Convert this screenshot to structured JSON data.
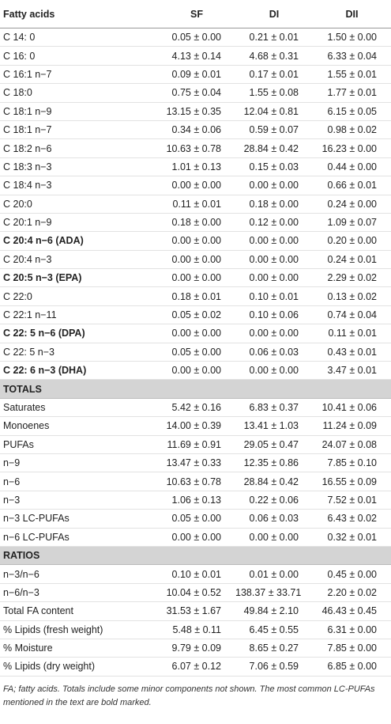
{
  "table": {
    "header": [
      "Fatty acids",
      "SF",
      "DI",
      "DII"
    ],
    "rows": [
      {
        "cells": [
          "C 14: 0",
          "0.05 ± 0.00",
          "0.21 ± 0.01",
          "1.50 ± 0.00"
        ]
      },
      {
        "cells": [
          "C 16: 0",
          "4.13 ± 0.14",
          "4.68 ± 0.31",
          "6.33 ± 0.04"
        ]
      },
      {
        "cells": [
          "C 16:1 n−7",
          "0.09 ± 0.01",
          "0.17 ± 0.01",
          "1.55 ± 0.01"
        ]
      },
      {
        "cells": [
          "C 18:0",
          "0.75 ± 0.04",
          "1.55 ± 0.08",
          "1.77 ± 0.01"
        ]
      },
      {
        "cells": [
          "C 18:1 n−9",
          "13.15 ± 0.35",
          "12.04 ± 0.81",
          "6.15 ± 0.05"
        ]
      },
      {
        "cells": [
          "C 18:1 n−7",
          "0.34 ± 0.06",
          "0.59 ± 0.07",
          "0.98 ± 0.02"
        ]
      },
      {
        "cells": [
          "C 18:2 n−6",
          "10.63 ± 0.78",
          "28.84 ± 0.42",
          "16.23 ± 0.00"
        ]
      },
      {
        "cells": [
          "C 18:3 n−3",
          "1.01 ± 0.13",
          "0.15 ± 0.03",
          "0.44 ± 0.00"
        ]
      },
      {
        "cells": [
          "C 18:4 n−3",
          "0.00 ± 0.00",
          "0.00 ± 0.00",
          "0.66 ± 0.01"
        ]
      },
      {
        "cells": [
          "C 20:0",
          "0.11 ± 0.01",
          "0.18 ± 0.00",
          "0.24 ± 0.00"
        ]
      },
      {
        "cells": [
          "C 20:1 n−9",
          "0.18 ± 0.00",
          "0.12 ± 0.00",
          "1.09 ± 0.07"
        ]
      },
      {
        "cells": [
          "C 20:4 n−6 (ADA)",
          "0.00 ± 0.00",
          "0.00 ± 0.00",
          "0.20 ± 0.00"
        ],
        "bold": true
      },
      {
        "cells": [
          "C 20:4 n−3",
          "0.00 ± 0.00",
          "0.00 ± 0.00",
          "0.24 ± 0.01"
        ]
      },
      {
        "cells": [
          "C 20:5 n−3 (EPA)",
          "0.00 ± 0.00",
          "0.00 ± 0.00",
          "2.29 ± 0.02"
        ],
        "bold": true
      },
      {
        "cells": [
          "C 22:0",
          "0.18 ± 0.01",
          "0.10 ± 0.01",
          "0.13 ± 0.02"
        ]
      },
      {
        "cells": [
          "C 22:1 n−11",
          "0.05 ± 0.02",
          "0.10 ± 0.06",
          "0.74 ± 0.04"
        ]
      },
      {
        "cells": [
          "C 22: 5 n−6 (DPA)",
          "0.00 ± 0.00",
          "0.00 ± 0.00",
          "0.11 ± 0.01"
        ],
        "bold": true
      },
      {
        "cells": [
          "C 22: 5 n−3",
          "0.05 ± 0.00",
          "0.06 ± 0.03",
          "0.43 ± 0.01"
        ]
      },
      {
        "cells": [
          "C 22: 6 n−3 (DHA)",
          "0.00 ± 0.00",
          "0.00 ± 0.00",
          "3.47 ± 0.01"
        ],
        "bold": true
      },
      {
        "section": "TOTALS"
      },
      {
        "cells": [
          "Saturates",
          "5.42 ± 0.16",
          "6.83 ± 0.37",
          "10.41 ± 0.06"
        ]
      },
      {
        "cells": [
          "Monoenes",
          "14.00 ± 0.39",
          "13.41 ± 1.03",
          "11.24 ± 0.09"
        ]
      },
      {
        "cells": [
          "PUFAs",
          "11.69 ± 0.91",
          "29.05 ± 0.47",
          "24.07 ± 0.08"
        ]
      },
      {
        "cells": [
          "n−9",
          "13.47 ± 0.33",
          "12.35 ± 0.86",
          "7.85 ± 0.10"
        ]
      },
      {
        "cells": [
          "n−6",
          "10.63 ± 0.78",
          "28.84 ± 0.42",
          "16.55 ± 0.09"
        ]
      },
      {
        "cells": [
          "n−3",
          "1.06 ± 0.13",
          "0.22 ± 0.06",
          "7.52 ± 0.01"
        ]
      },
      {
        "cells": [
          "n−3 LC-PUFAs",
          "0.05 ± 0.00",
          "0.06 ± 0.03",
          "6.43 ± 0.02"
        ]
      },
      {
        "cells": [
          "n−6 LC-PUFAs",
          "0.00 ± 0.00",
          "0.00 ± 0.00",
          "0.32 ± 0.01"
        ]
      },
      {
        "section": "RATIOS"
      },
      {
        "cells": [
          "n−3/n−6",
          "0.10 ± 0.01",
          "0.01 ± 0.00",
          "0.45 ± 0.00"
        ]
      },
      {
        "cells": [
          "n−6/n−3",
          "10.04 ± 0.52",
          "138.37 ± 33.71",
          "2.20 ± 0.02"
        ]
      },
      {
        "cells": [
          "Total FA content",
          "31.53 ± 1.67",
          "49.84 ± 2.10",
          "46.43 ± 0.45"
        ]
      },
      {
        "cells": [
          "% Lipids (fresh weight)",
          "5.48 ± 0.11",
          "6.45 ± 0.55",
          "6.31 ± 0.00"
        ]
      },
      {
        "cells": [
          "% Moisture",
          "9.79 ± 0.09",
          "8.65 ± 0.27",
          "7.85 ± 0.00"
        ]
      },
      {
        "cells": [
          "% Lipids (dry weight)",
          "6.07 ± 0.12",
          "7.06 ± 0.59",
          "6.85 ± 0.00"
        ]
      }
    ]
  },
  "footnote": "FA; fatty acids. Totals include some minor components not shown. The most common LC-PUFAs mentioned in the text are bold marked."
}
